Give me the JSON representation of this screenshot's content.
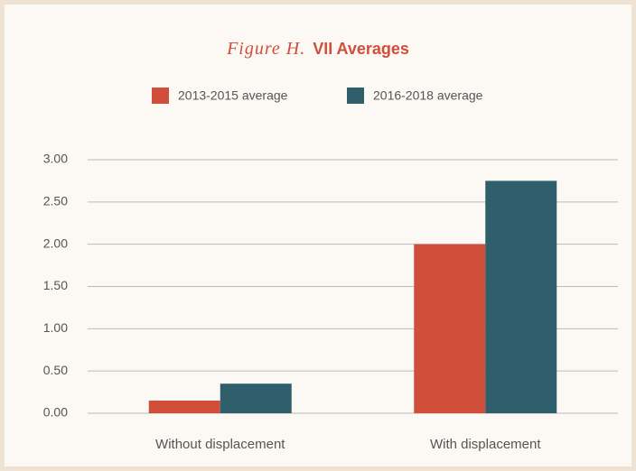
{
  "chart_data": {
    "type": "bar",
    "title_label": "Figure H.",
    "title": "VII Averages",
    "categories": [
      "Without displacement",
      "With displacement"
    ],
    "series": [
      {
        "name": "2013-2015 average",
        "color": "#cf4f3b",
        "values": [
          0.15,
          2.0
        ]
      },
      {
        "name": "2016-2018 average",
        "color": "#2f5f6a",
        "values": [
          0.35,
          2.75
        ]
      }
    ],
    "ylim": [
      0,
      3
    ],
    "yticks": [
      {
        "value": 0,
        "label": "0.00"
      },
      {
        "value": 0.5,
        "label": "0.50"
      },
      {
        "value": 1,
        "label": "1.00"
      },
      {
        "value": 1.5,
        "label": "1.50"
      },
      {
        "value": 2,
        "label": "2.00"
      },
      {
        "value": 2.5,
        "label": "2.50"
      },
      {
        "value": 3,
        "label": "3.00"
      }
    ],
    "grid": true,
    "legend": "top"
  }
}
